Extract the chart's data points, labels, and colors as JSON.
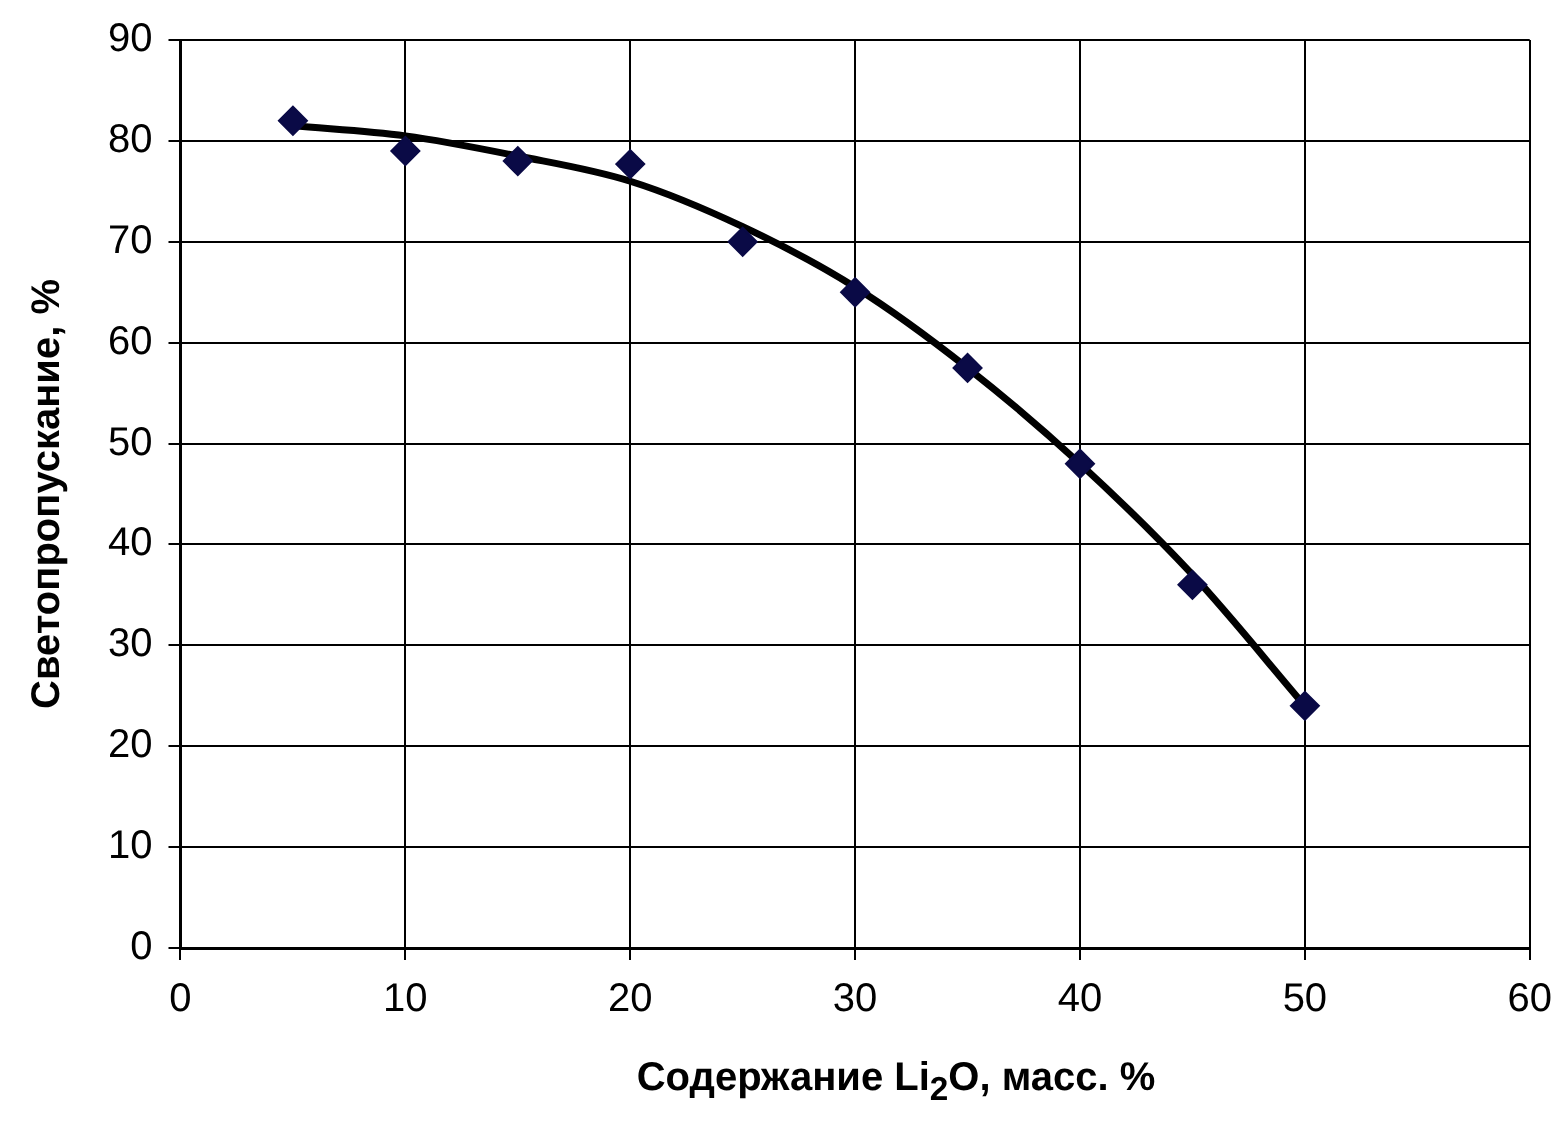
{
  "chart_data": {
    "type": "scatter",
    "xlabel": "Содержание Li$_{2}$O, масс. %",
    "ylabel": "Светопропускание, %",
    "x": [
      5,
      10,
      15,
      20,
      25,
      30,
      35,
      40,
      45,
      50
    ],
    "series": [
      {
        "color": "#0a0a46",
        "marker": "diamond",
        "values": [
          82,
          79,
          78,
          77.7,
          70,
          65,
          57.5,
          48,
          36,
          24
        ]
      },
      {
        "type": "line",
        "color": "#000000",
        "marker": "none",
        "x": [
          5,
          10,
          15,
          20,
          25,
          30,
          35,
          40,
          45,
          50
        ],
        "values": [
          81.5,
          80.5,
          78.5,
          76,
          71.5,
          65.5,
          57.5,
          48,
          37,
          24
        ]
      }
    ],
    "xlim": [
      0,
      60
    ],
    "xticks": [
      0,
      10,
      20,
      30,
      40,
      50,
      60
    ],
    "ylim": [
      0,
      90
    ],
    "yticks": [
      0,
      10,
      20,
      30,
      40,
      50,
      60,
      70,
      80,
      90
    ],
    "grid": true,
    "legend": false
  }
}
